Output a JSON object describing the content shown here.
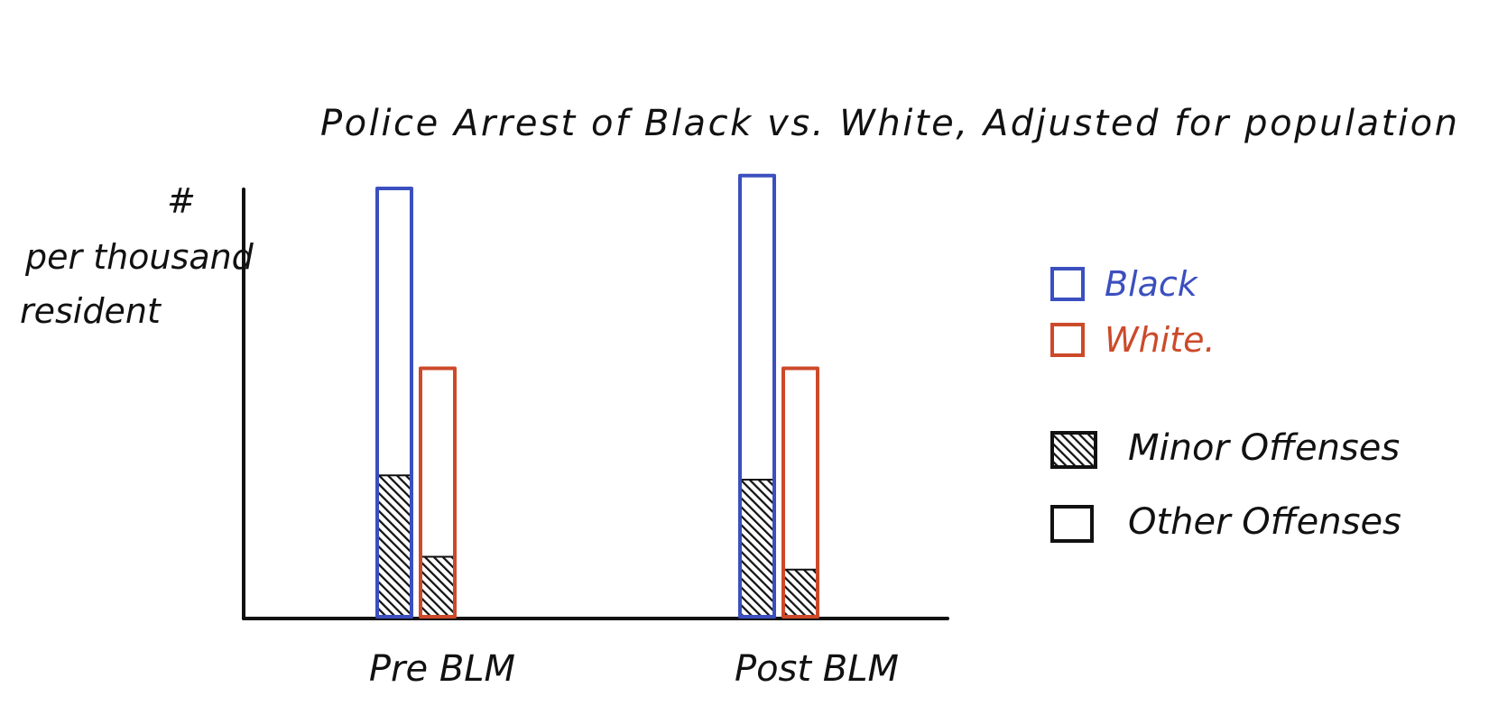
{
  "chart_data": {
    "type": "bar",
    "stacked": true,
    "title": "Police Arrest of Black vs. White, Adjusted for population",
    "ylabel_symbol": "#",
    "ylabel_line1": "per thousand",
    "ylabel_line2": "resident",
    "categories": [
      "Pre BLM",
      "Post BLM"
    ],
    "ylim": [
      0,
      100
    ],
    "y_ticks": false,
    "grid": false,
    "legend_position": "right",
    "series": [
      {
        "name": "Black",
        "color": "#3b4fbf",
        "total": [
          100,
          103
        ],
        "minor": [
          33,
          32
        ]
      },
      {
        "name": "White",
        "color": "#cc4a2a",
        "total": [
          58,
          58
        ],
        "minor": [
          14,
          11
        ]
      }
    ],
    "legend": {
      "black": "Black",
      "white": "White.",
      "minor": "Minor Offenses",
      "other": "Other Offenses"
    }
  }
}
